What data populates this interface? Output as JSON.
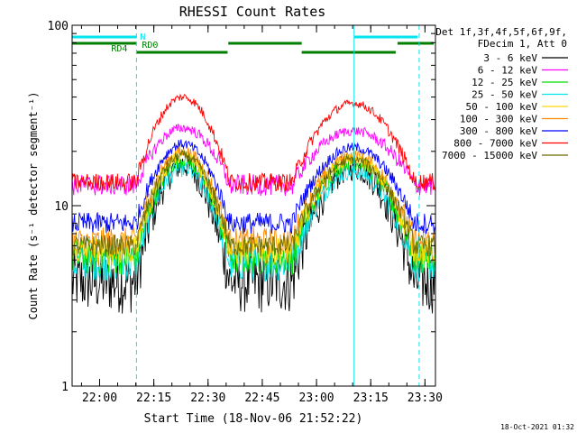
{
  "chart_data": {
    "type": "line",
    "title": "RHESSI Count Rates",
    "xlabel": "Start Time (18-Nov-06 21:52:22)",
    "ylabel": "Count Rate (s⁻¹ detector segment⁻¹)",
    "x_range_minutes_after_2152": [
      0,
      100.5
    ],
    "y_scale": "log",
    "ylim": [
      1,
      100
    ],
    "x_ticks": [
      {
        "label": "22:00",
        "min": 7.6
      },
      {
        "label": "22:15",
        "min": 22.6
      },
      {
        "label": "22:30",
        "min": 37.6
      },
      {
        "label": "22:45",
        "min": 52.6
      },
      {
        "label": "23:00",
        "min": 67.6
      },
      {
        "label": "23:15",
        "min": 82.6
      },
      {
        "label": "23:30",
        "min": 97.6
      }
    ],
    "y_ticks": [
      {
        "label": "1",
        "value": 1
      },
      {
        "label": "10",
        "value": 10
      },
      {
        "label": "100",
        "value": 100
      }
    ],
    "legend_header": [
      "Det 1f,3f,4f,5f,6f,9f,",
      "FDecim 1, Att 0"
    ],
    "legend_position": "right",
    "timestamp": "18-Oct-2021 01:32",
    "vertical_markers": [
      {
        "min": 0.0,
        "style": "solid"
      },
      {
        "min": 17.8,
        "style": "dashed"
      },
      {
        "min": 78.0,
        "style": "solid"
      },
      {
        "min": 96.0,
        "style": "dashed"
      }
    ],
    "flag_bars": [
      {
        "label": "N",
        "color": "#00e5ee",
        "level": 1,
        "intervals": [
          [
            0,
            17.8
          ],
          [
            78.0,
            95.5
          ]
        ]
      },
      {
        "label": "RD0",
        "color": "#007f00",
        "level": 2,
        "intervals": [
          [
            0,
            17.8
          ],
          [
            43.2,
            63.5
          ],
          [
            90.0,
            100
          ]
        ]
      },
      {
        "label": "RD4",
        "color": "#007f00",
        "level": 3,
        "intervals": [
          [
            17.8,
            43.0
          ],
          [
            63.5,
            89.5
          ]
        ]
      }
    ],
    "series_profile": {
      "quiet_minutes": [
        [
          0,
          17.8
        ],
        [
          43.5,
          61.0
        ],
        [
          94.5,
          100.5
        ]
      ],
      "peak_1_min": 30.5,
      "peak_2_min": 79.0
    },
    "series": [
      {
        "name": "3 - 6 keV",
        "color": "#000000",
        "base": 3.8,
        "peak1": 17.0,
        "peak2": 16.5,
        "noise": 0.18
      },
      {
        "name": "6 - 12 keV",
        "color": "#ff00ff",
        "base": 13.0,
        "peak1": 27.0,
        "peak2": 26.0,
        "noise": 0.06
      },
      {
        "name": "12 - 25 keV",
        "color": "#00dd00",
        "base": 5.2,
        "peak1": 18.0,
        "peak2": 17.5,
        "noise": 0.1
      },
      {
        "name": "25 - 50 keV",
        "color": "#00e5ee",
        "base": 4.8,
        "peak1": 16.0,
        "peak2": 15.5,
        "noise": 0.1
      },
      {
        "name": "50 - 100 keV",
        "color": "#ffd700",
        "base": 5.6,
        "peak1": 19.0,
        "peak2": 18.0,
        "noise": 0.08
      },
      {
        "name": "100 - 300 keV",
        "color": "#ff8c00",
        "base": 6.3,
        "peak1": 20.0,
        "peak2": 19.0,
        "noise": 0.08
      },
      {
        "name": "300 - 800 keV",
        "color": "#0000ff",
        "base": 8.0,
        "peak1": 22.0,
        "peak2": 21.0,
        "noise": 0.06
      },
      {
        "name": "800 - 7000 keV",
        "color": "#ff0000",
        "base": 13.5,
        "peak1": 40.0,
        "peak2": 37.0,
        "noise": 0.05
      },
      {
        "name": "7000 - 15000 keV",
        "color": "#6b6b00",
        "base": 6.0,
        "peak1": 19.0,
        "peak2": 18.0,
        "noise": 0.06
      }
    ]
  }
}
